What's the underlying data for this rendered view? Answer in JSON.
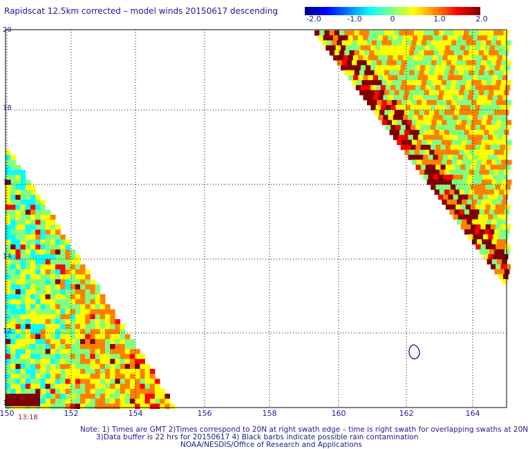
{
  "title": "Rapidscat 12.5km corrected – model winds 20150617 descending",
  "colorbar": {
    "ticks": [
      "-2.0",
      "-1.0",
      "0",
      "1.0",
      "2.0"
    ],
    "colors": [
      "#00007f",
      "#0000ff",
      "#0080ff",
      "#00ffff",
      "#80ff80",
      "#ffff00",
      "#ff8000",
      "#ff0000",
      "#7f0000"
    ]
  },
  "axes": {
    "x_ticks": [
      "150",
      "152",
      "154",
      "156",
      "158",
      "160",
      "162",
      "164"
    ],
    "y_ticks": [
      "12",
      "14",
      "16",
      "18",
      "20"
    ],
    "y_bottom_label": "1"
  },
  "swath_time": "13:18",
  "notes": [
    "Note: 1) Times are GMT 2)Times correspond to 20N at right swath edge – time is right swath for overlapping swaths at 20N",
    "3)Data buffer is 22 hrs for 20150617 4) Black barbs indicate possible rain contamination",
    "NOAA/NESDIS/Office of Research and Applications"
  ]
}
